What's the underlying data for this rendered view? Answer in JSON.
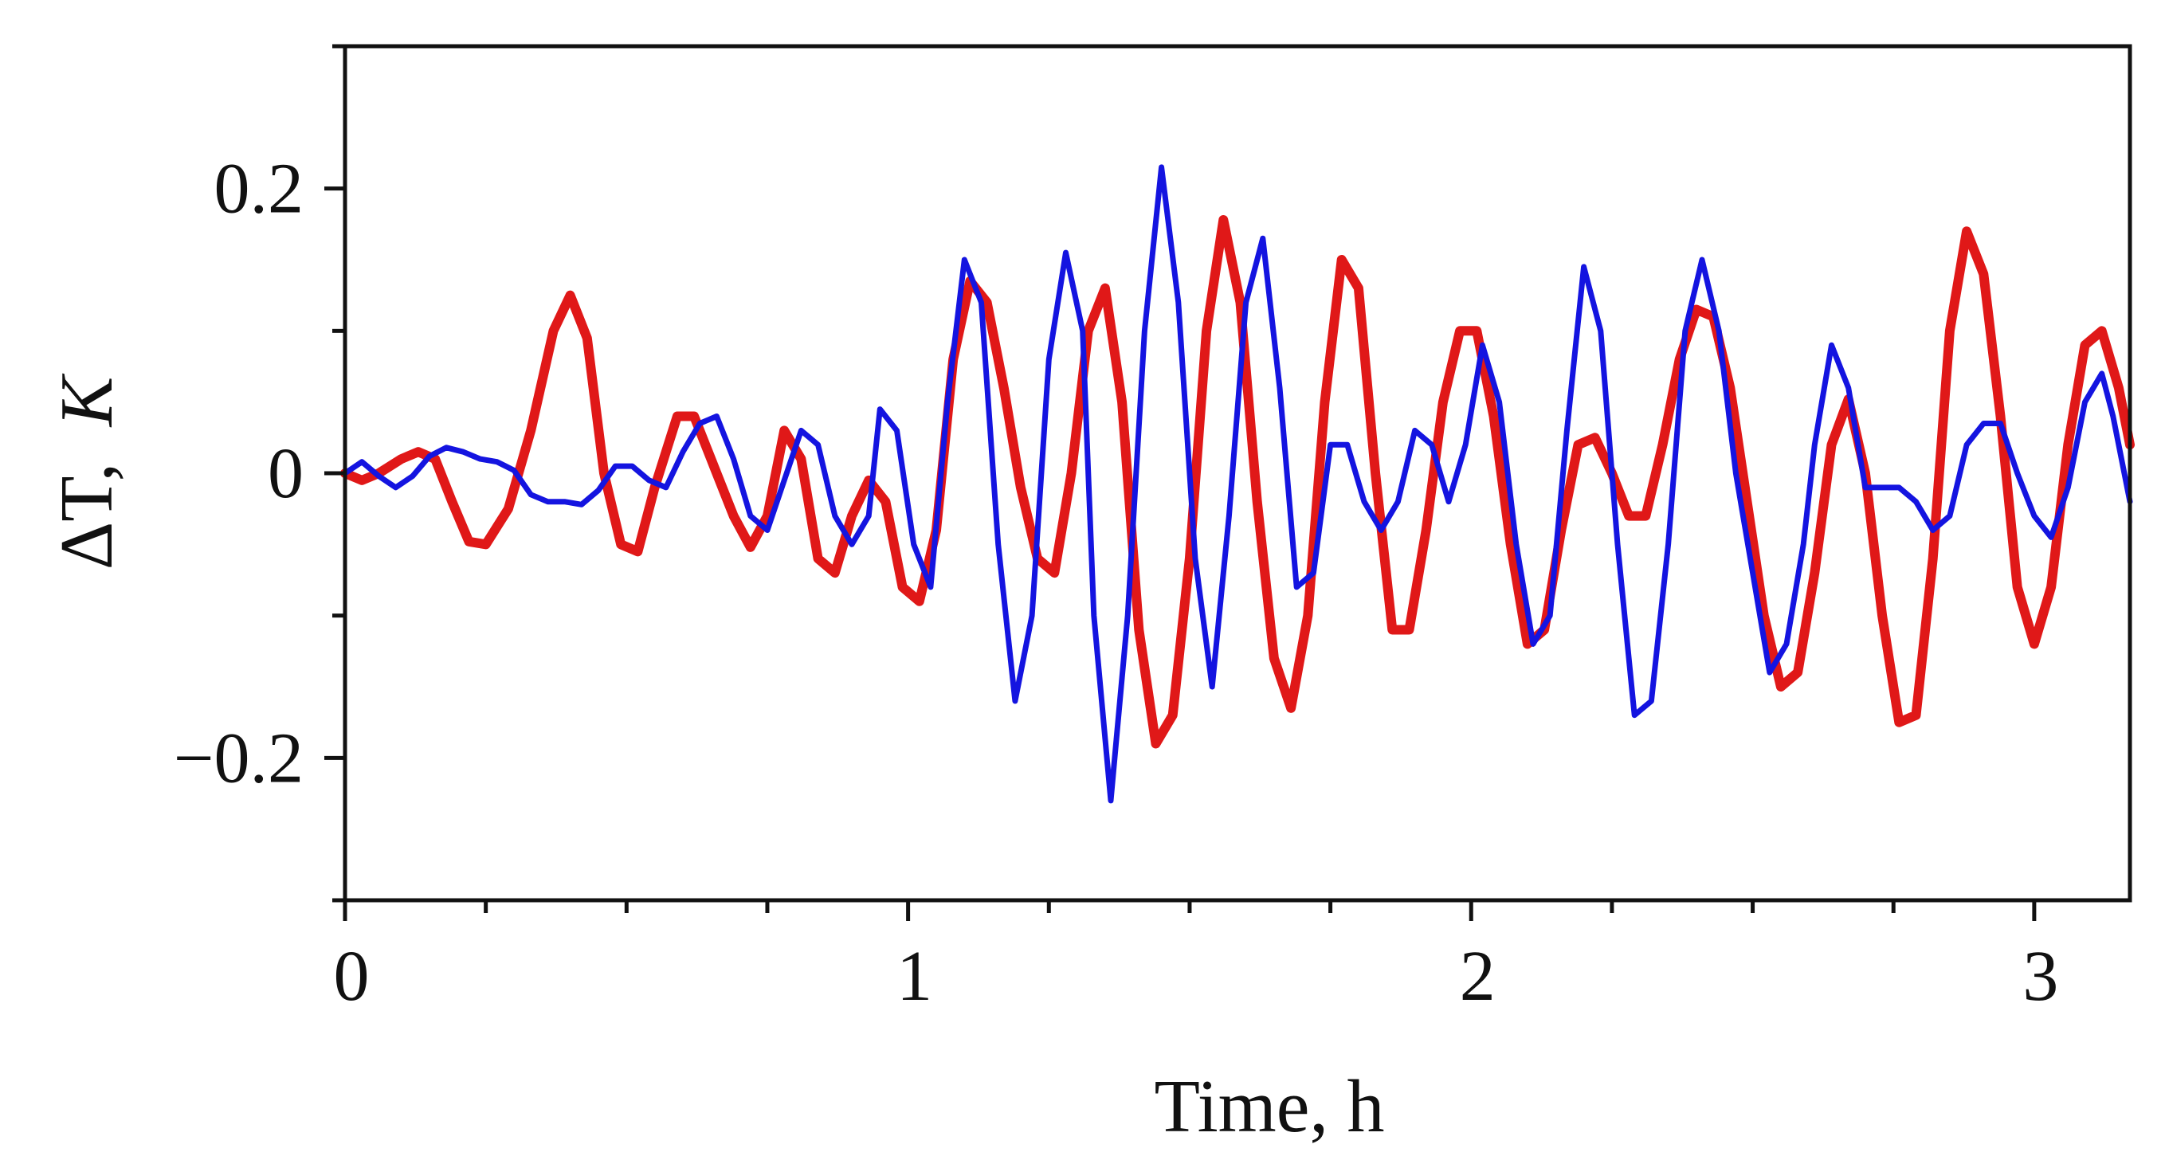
{
  "chart_data": {
    "type": "line",
    "title": "",
    "xlabel": "Time, h",
    "ylabel": "ΔT,",
    "ylabel_unit": "K",
    "xlim": [
      0,
      3.17
    ],
    "ylim": [
      -0.3,
      0.3
    ],
    "x_ticks": [
      0,
      1,
      2,
      3
    ],
    "x_tick_labels": [
      "0",
      "1",
      "2",
      "3"
    ],
    "x_minor_ticks": [
      0.25,
      0.5,
      0.75,
      1.25,
      1.5,
      1.75,
      2.25,
      2.5,
      2.75
    ],
    "y_ticks": [
      -0.2,
      0,
      0.2
    ],
    "y_tick_labels": [
      "−0.2",
      "0",
      "0.2"
    ],
    "y_minor_ticks": [
      -0.3,
      -0.1,
      0.1,
      0.3
    ],
    "grid": false,
    "legend": "none",
    "series": [
      {
        "color": "#e01818",
        "points": [
          [
            0.0,
            0.0
          ],
          [
            0.03,
            -0.005
          ],
          [
            0.06,
            0.0
          ],
          [
            0.1,
            0.01
          ],
          [
            0.13,
            0.015
          ],
          [
            0.16,
            0.01
          ],
          [
            0.19,
            -0.02
          ],
          [
            0.22,
            -0.048
          ],
          [
            0.25,
            -0.05
          ],
          [
            0.29,
            -0.025
          ],
          [
            0.33,
            0.03
          ],
          [
            0.37,
            0.1
          ],
          [
            0.4,
            0.125
          ],
          [
            0.43,
            0.095
          ],
          [
            0.46,
            0.0
          ],
          [
            0.49,
            -0.05
          ],
          [
            0.52,
            -0.055
          ],
          [
            0.55,
            -0.01
          ],
          [
            0.59,
            0.04
          ],
          [
            0.62,
            0.04
          ],
          [
            0.65,
            0.01
          ],
          [
            0.69,
            -0.03
          ],
          [
            0.72,
            -0.052
          ],
          [
            0.75,
            -0.03
          ],
          [
            0.78,
            0.03
          ],
          [
            0.81,
            0.01
          ],
          [
            0.84,
            -0.06
          ],
          [
            0.87,
            -0.07
          ],
          [
            0.9,
            -0.03
          ],
          [
            0.93,
            -0.005
          ],
          [
            0.96,
            -0.02
          ],
          [
            0.99,
            -0.08
          ],
          [
            1.02,
            -0.09
          ],
          [
            1.05,
            -0.04
          ],
          [
            1.08,
            0.08
          ],
          [
            1.11,
            0.135
          ],
          [
            1.14,
            0.12
          ],
          [
            1.17,
            0.06
          ],
          [
            1.2,
            -0.01
          ],
          [
            1.23,
            -0.06
          ],
          [
            1.26,
            -0.07
          ],
          [
            1.29,
            0.0
          ],
          [
            1.32,
            0.1
          ],
          [
            1.35,
            0.13
          ],
          [
            1.38,
            0.05
          ],
          [
            1.41,
            -0.11
          ],
          [
            1.44,
            -0.19
          ],
          [
            1.47,
            -0.17
          ],
          [
            1.5,
            -0.06
          ],
          [
            1.53,
            0.1
          ],
          [
            1.56,
            0.178
          ],
          [
            1.59,
            0.12
          ],
          [
            1.62,
            -0.02
          ],
          [
            1.65,
            -0.13
          ],
          [
            1.68,
            -0.165
          ],
          [
            1.71,
            -0.1
          ],
          [
            1.74,
            0.05
          ],
          [
            1.77,
            0.15
          ],
          [
            1.8,
            0.13
          ],
          [
            1.83,
            0.0
          ],
          [
            1.86,
            -0.11
          ],
          [
            1.89,
            -0.11
          ],
          [
            1.92,
            -0.04
          ],
          [
            1.95,
            0.05
          ],
          [
            1.98,
            0.1
          ],
          [
            2.01,
            0.1
          ],
          [
            2.04,
            0.04
          ],
          [
            2.07,
            -0.05
          ],
          [
            2.1,
            -0.12
          ],
          [
            2.13,
            -0.11
          ],
          [
            2.16,
            -0.04
          ],
          [
            2.19,
            0.02
          ],
          [
            2.22,
            0.025
          ],
          [
            2.25,
            0.0
          ],
          [
            2.28,
            -0.03
          ],
          [
            2.31,
            -0.03
          ],
          [
            2.34,
            0.02
          ],
          [
            2.37,
            0.08
          ],
          [
            2.4,
            0.115
          ],
          [
            2.43,
            0.11
          ],
          [
            2.46,
            0.06
          ],
          [
            2.49,
            -0.02
          ],
          [
            2.52,
            -0.1
          ],
          [
            2.55,
            -0.15
          ],
          [
            2.58,
            -0.14
          ],
          [
            2.61,
            -0.07
          ],
          [
            2.64,
            0.02
          ],
          [
            2.67,
            0.052
          ],
          [
            2.7,
            0.0
          ],
          [
            2.73,
            -0.1
          ],
          [
            2.76,
            -0.175
          ],
          [
            2.79,
            -0.17
          ],
          [
            2.82,
            -0.06
          ],
          [
            2.85,
            0.1
          ],
          [
            2.88,
            0.17
          ],
          [
            2.91,
            0.14
          ],
          [
            2.94,
            0.04
          ],
          [
            2.97,
            -0.08
          ],
          [
            3.0,
            -0.12
          ],
          [
            3.03,
            -0.08
          ],
          [
            3.06,
            0.02
          ],
          [
            3.09,
            0.09
          ],
          [
            3.12,
            0.1
          ],
          [
            3.15,
            0.06
          ],
          [
            3.17,
            0.02
          ]
        ]
      },
      {
        "color": "#1414e0",
        "points": [
          [
            0.0,
            0.0
          ],
          [
            0.03,
            0.008
          ],
          [
            0.06,
            -0.002
          ],
          [
            0.09,
            -0.01
          ],
          [
            0.12,
            -0.002
          ],
          [
            0.15,
            0.012
          ],
          [
            0.18,
            0.018
          ],
          [
            0.21,
            0.015
          ],
          [
            0.24,
            0.01
          ],
          [
            0.27,
            0.008
          ],
          [
            0.3,
            0.002
          ],
          [
            0.33,
            -0.015
          ],
          [
            0.36,
            -0.02
          ],
          [
            0.39,
            -0.02
          ],
          [
            0.42,
            -0.022
          ],
          [
            0.45,
            -0.012
          ],
          [
            0.48,
            0.005
          ],
          [
            0.51,
            0.005
          ],
          [
            0.54,
            -0.005
          ],
          [
            0.57,
            -0.01
          ],
          [
            0.6,
            0.015
          ],
          [
            0.63,
            0.035
          ],
          [
            0.66,
            0.04
          ],
          [
            0.69,
            0.01
          ],
          [
            0.72,
            -0.03
          ],
          [
            0.75,
            -0.04
          ],
          [
            0.78,
            -0.005
          ],
          [
            0.81,
            0.03
          ],
          [
            0.84,
            0.02
          ],
          [
            0.87,
            -0.03
          ],
          [
            0.9,
            -0.05
          ],
          [
            0.93,
            -0.03
          ],
          [
            0.95,
            0.045
          ],
          [
            0.98,
            0.03
          ],
          [
            1.01,
            -0.05
          ],
          [
            1.04,
            -0.08
          ],
          [
            1.07,
            0.05
          ],
          [
            1.1,
            0.15
          ],
          [
            1.13,
            0.12
          ],
          [
            1.16,
            -0.05
          ],
          [
            1.19,
            -0.16
          ],
          [
            1.22,
            -0.1
          ],
          [
            1.25,
            0.08
          ],
          [
            1.28,
            0.155
          ],
          [
            1.31,
            0.1
          ],
          [
            1.33,
            -0.1
          ],
          [
            1.36,
            -0.23
          ],
          [
            1.39,
            -0.1
          ],
          [
            1.42,
            0.1
          ],
          [
            1.45,
            0.215
          ],
          [
            1.48,
            0.12
          ],
          [
            1.51,
            -0.06
          ],
          [
            1.54,
            -0.15
          ],
          [
            1.57,
            -0.03
          ],
          [
            1.6,
            0.12
          ],
          [
            1.63,
            0.165
          ],
          [
            1.66,
            0.06
          ],
          [
            1.69,
            -0.08
          ],
          [
            1.72,
            -0.07
          ],
          [
            1.75,
            0.02
          ],
          [
            1.78,
            0.02
          ],
          [
            1.81,
            -0.02
          ],
          [
            1.84,
            -0.04
          ],
          [
            1.87,
            -0.02
          ],
          [
            1.9,
            0.03
          ],
          [
            1.93,
            0.02
          ],
          [
            1.96,
            -0.02
          ],
          [
            1.99,
            0.02
          ],
          [
            2.02,
            0.09
          ],
          [
            2.05,
            0.05
          ],
          [
            2.08,
            -0.05
          ],
          [
            2.11,
            -0.12
          ],
          [
            2.14,
            -0.1
          ],
          [
            2.17,
            0.03
          ],
          [
            2.2,
            0.145
          ],
          [
            2.23,
            0.1
          ],
          [
            2.26,
            -0.05
          ],
          [
            2.29,
            -0.17
          ],
          [
            2.32,
            -0.16
          ],
          [
            2.35,
            -0.05
          ],
          [
            2.38,
            0.1
          ],
          [
            2.41,
            0.15
          ],
          [
            2.44,
            0.1
          ],
          [
            2.47,
            0.0
          ],
          [
            2.5,
            -0.07
          ],
          [
            2.53,
            -0.14
          ],
          [
            2.56,
            -0.12
          ],
          [
            2.59,
            -0.05
          ],
          [
            2.61,
            0.02
          ],
          [
            2.64,
            0.09
          ],
          [
            2.67,
            0.06
          ],
          [
            2.7,
            -0.01
          ],
          [
            2.73,
            -0.01
          ],
          [
            2.76,
            -0.01
          ],
          [
            2.79,
            -0.02
          ],
          [
            2.82,
            -0.04
          ],
          [
            2.85,
            -0.03
          ],
          [
            2.88,
            0.02
          ],
          [
            2.91,
            0.035
          ],
          [
            2.94,
            0.035
          ],
          [
            2.97,
            0.0
          ],
          [
            3.0,
            -0.03
          ],
          [
            3.03,
            -0.045
          ],
          [
            3.06,
            -0.01
          ],
          [
            3.09,
            0.05
          ],
          [
            3.12,
            0.07
          ],
          [
            3.14,
            0.04
          ],
          [
            3.17,
            -0.02
          ]
        ]
      }
    ]
  }
}
